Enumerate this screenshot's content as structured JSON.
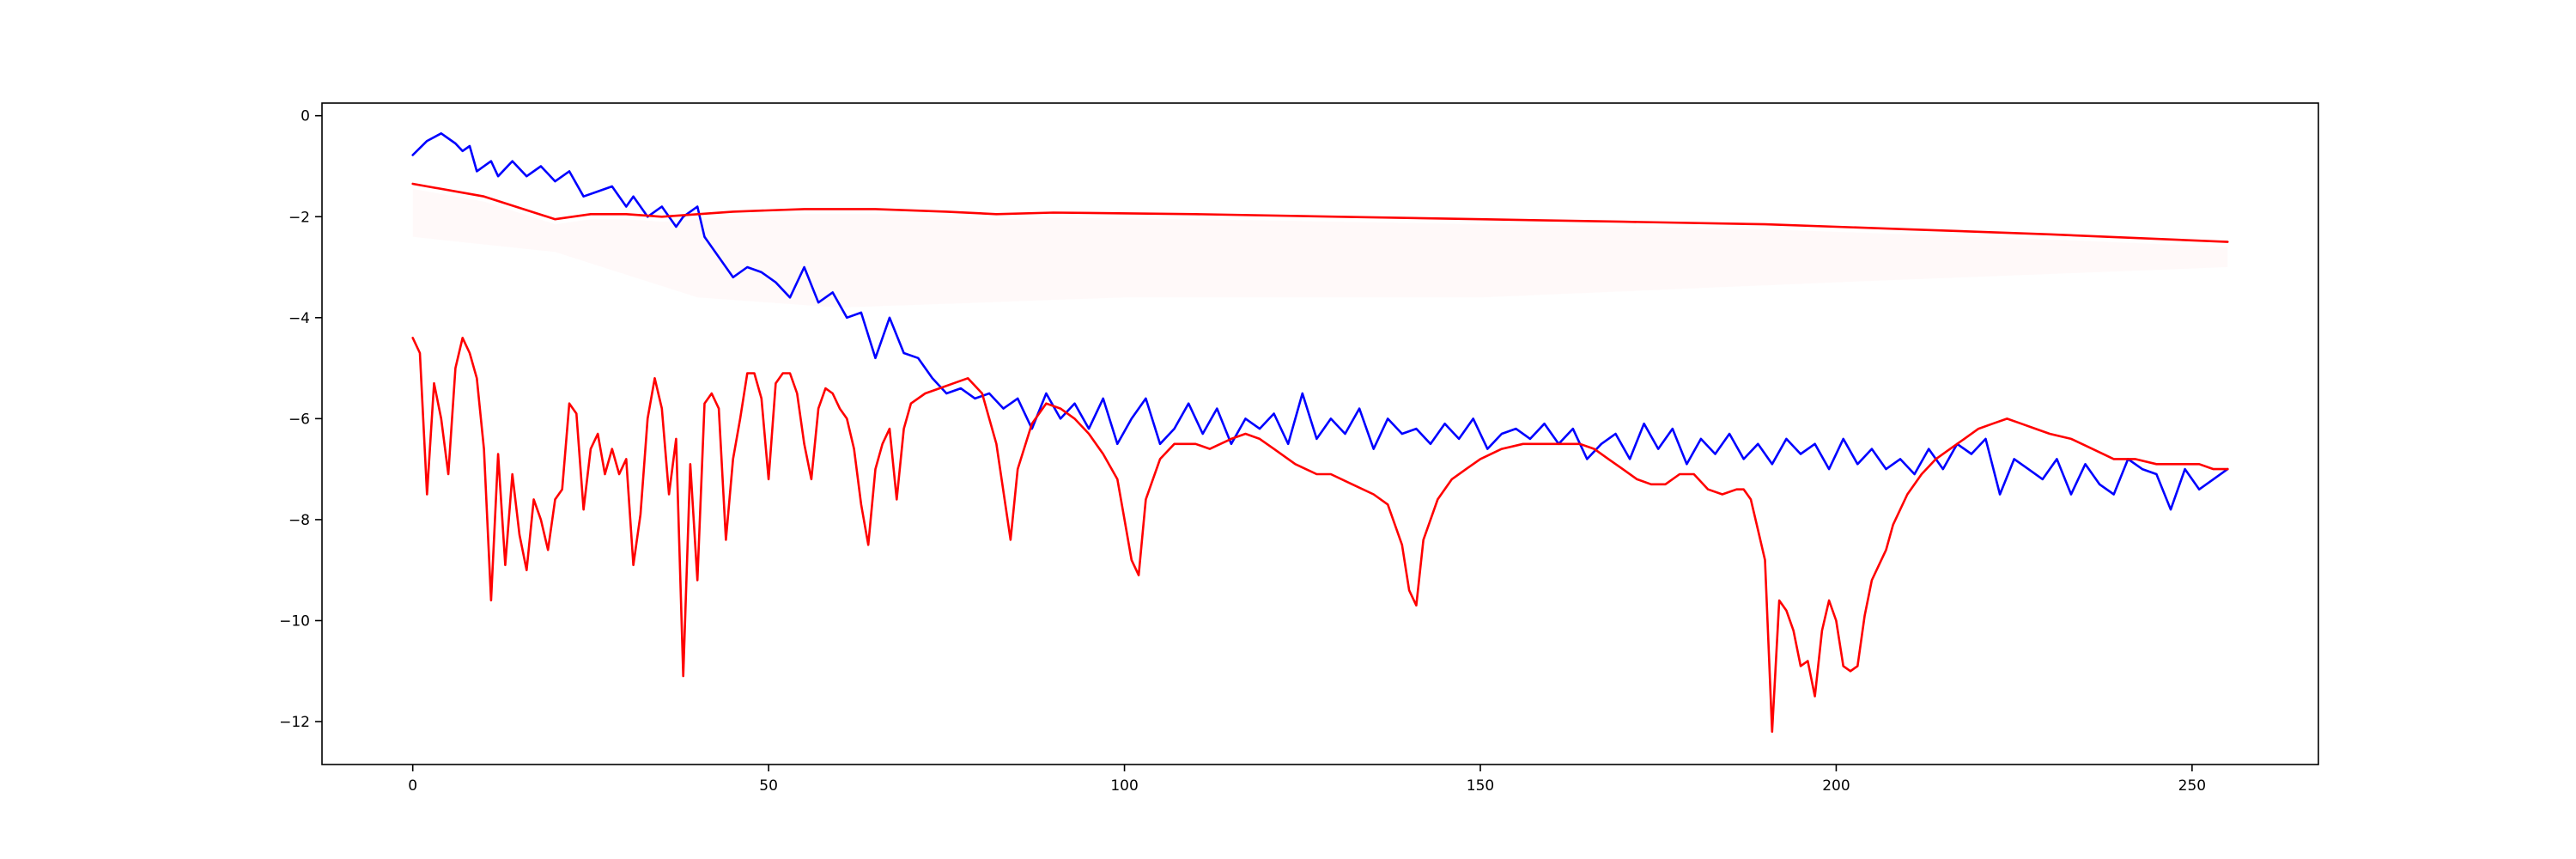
{
  "chart_data": {
    "type": "line",
    "title": "",
    "xlabel": "",
    "ylabel": "",
    "xlim": [
      -12.75,
      267.75
    ],
    "ylim": [
      -12.85,
      0.25
    ],
    "grid": false,
    "legend": "none",
    "x_ticks": [
      0,
      50,
      100,
      150,
      200,
      250
    ],
    "x_tick_labels": [
      "0",
      "50",
      "100",
      "150",
      "200",
      "250"
    ],
    "y_ticks": [
      0,
      -2,
      -4,
      -6,
      -8,
      -10,
      -12
    ],
    "y_tick_labels": [
      "0",
      "−2",
      "−4",
      "−6",
      "−8",
      "−10",
      "−12"
    ],
    "series": [
      {
        "color": "#0000ff",
        "style": "solid",
        "points": [
          [
            0,
            -0.78
          ],
          [
            2,
            -0.5
          ],
          [
            4,
            -0.35
          ],
          [
            6,
            -0.55
          ],
          [
            7,
            -0.7
          ],
          [
            8,
            -0.6
          ],
          [
            9,
            -1.1
          ],
          [
            11,
            -0.9
          ],
          [
            12,
            -1.2
          ],
          [
            14,
            -0.9
          ],
          [
            16,
            -1.2
          ],
          [
            18,
            -1.0
          ],
          [
            20,
            -1.3
          ],
          [
            22,
            -1.1
          ],
          [
            24,
            -1.6
          ],
          [
            26,
            -1.5
          ],
          [
            28,
            -1.4
          ],
          [
            30,
            -1.8
          ],
          [
            31,
            -1.6
          ],
          [
            33,
            -2.0
          ],
          [
            35,
            -1.8
          ],
          [
            37,
            -2.2
          ],
          [
            38,
            -2.0
          ],
          [
            40,
            -1.8
          ],
          [
            41,
            -2.4
          ],
          [
            43,
            -2.8
          ],
          [
            45,
            -3.2
          ],
          [
            47,
            -3.0
          ],
          [
            49,
            -3.1
          ],
          [
            51,
            -3.3
          ],
          [
            53,
            -3.6
          ],
          [
            55,
            -3.0
          ],
          [
            57,
            -3.7
          ],
          [
            59,
            -3.5
          ],
          [
            61,
            -4.0
          ],
          [
            63,
            -3.9
          ],
          [
            65,
            -4.8
          ],
          [
            67,
            -4.0
          ],
          [
            69,
            -4.7
          ],
          [
            71,
            -4.8
          ],
          [
            73,
            -5.2
          ],
          [
            75,
            -5.5
          ],
          [
            77,
            -5.4
          ],
          [
            79,
            -5.6
          ],
          [
            81,
            -5.5
          ],
          [
            83,
            -5.8
          ],
          [
            85,
            -5.6
          ],
          [
            87,
            -6.2
          ],
          [
            89,
            -5.5
          ],
          [
            91,
            -6.0
          ],
          [
            93,
            -5.7
          ],
          [
            95,
            -6.2
          ],
          [
            97,
            -5.6
          ],
          [
            99,
            -6.5
          ],
          [
            101,
            -6.0
          ],
          [
            103,
            -5.6
          ],
          [
            105,
            -6.5
          ],
          [
            107,
            -6.2
          ],
          [
            109,
            -5.7
          ],
          [
            111,
            -6.3
          ],
          [
            113,
            -5.8
          ],
          [
            115,
            -6.5
          ],
          [
            117,
            -6.0
          ],
          [
            119,
            -6.2
          ],
          [
            121,
            -5.9
          ],
          [
            123,
            -6.5
          ],
          [
            125,
            -5.5
          ],
          [
            127,
            -6.4
          ],
          [
            129,
            -6.0
          ],
          [
            131,
            -6.3
          ],
          [
            133,
            -5.8
          ],
          [
            135,
            -6.6
          ],
          [
            137,
            -6.0
          ],
          [
            139,
            -6.3
          ],
          [
            141,
            -6.2
          ],
          [
            143,
            -6.5
          ],
          [
            145,
            -6.1
          ],
          [
            147,
            -6.4
          ],
          [
            149,
            -6.0
          ],
          [
            151,
            -6.6
          ],
          [
            153,
            -6.3
          ],
          [
            155,
            -6.2
          ],
          [
            157,
            -6.4
          ],
          [
            159,
            -6.1
          ],
          [
            161,
            -6.5
          ],
          [
            163,
            -6.2
          ],
          [
            165,
            -6.8
          ],
          [
            167,
            -6.5
          ],
          [
            169,
            -6.3
          ],
          [
            171,
            -6.8
          ],
          [
            173,
            -6.1
          ],
          [
            175,
            -6.6
          ],
          [
            177,
            -6.2
          ],
          [
            179,
            -6.9
          ],
          [
            181,
            -6.4
          ],
          [
            183,
            -6.7
          ],
          [
            185,
            -6.3
          ],
          [
            187,
            -6.8
          ],
          [
            189,
            -6.5
          ],
          [
            191,
            -6.9
          ],
          [
            193,
            -6.4
          ],
          [
            195,
            -6.7
          ],
          [
            197,
            -6.5
          ],
          [
            199,
            -7.0
          ],
          [
            201,
            -6.4
          ],
          [
            203,
            -6.9
          ],
          [
            205,
            -6.6
          ],
          [
            207,
            -7.0
          ],
          [
            209,
            -6.8
          ],
          [
            211,
            -7.1
          ],
          [
            213,
            -6.6
          ],
          [
            215,
            -7.0
          ],
          [
            217,
            -6.5
          ],
          [
            219,
            -6.7
          ],
          [
            221,
            -6.4
          ],
          [
            223,
            -7.5
          ],
          [
            225,
            -6.8
          ],
          [
            227,
            -7.0
          ],
          [
            229,
            -7.2
          ],
          [
            231,
            -6.8
          ],
          [
            233,
            -7.5
          ],
          [
            235,
            -6.9
          ],
          [
            237,
            -7.3
          ],
          [
            239,
            -7.5
          ],
          [
            241,
            -6.8
          ],
          [
            243,
            -7.0
          ],
          [
            245,
            -7.1
          ],
          [
            247,
            -7.8
          ],
          [
            249,
            -7.0
          ],
          [
            251,
            -7.4
          ],
          [
            253,
            -7.2
          ],
          [
            255,
            -7.0
          ]
        ]
      },
      {
        "color": "#ff0000",
        "style": "solid",
        "points": [
          [
            0,
            -1.35
          ],
          [
            10,
            -1.6
          ],
          [
            20,
            -2.05
          ],
          [
            25,
            -1.95
          ],
          [
            30,
            -1.95
          ],
          [
            35,
            -2.0
          ],
          [
            45,
            -1.9
          ],
          [
            55,
            -1.85
          ],
          [
            65,
            -1.85
          ],
          [
            75,
            -1.9
          ],
          [
            82,
            -1.95
          ],
          [
            90,
            -1.92
          ],
          [
            110,
            -1.95
          ],
          [
            130,
            -2.0
          ],
          [
            150,
            -2.05
          ],
          [
            170,
            -2.1
          ],
          [
            190,
            -2.15
          ],
          [
            210,
            -2.25
          ],
          [
            230,
            -2.35
          ],
          [
            255,
            -2.5
          ]
        ]
      },
      {
        "color": "#ff0000",
        "style": "solid",
        "points": [
          [
            0,
            -4.4
          ],
          [
            1,
            -4.7
          ],
          [
            2,
            -7.5
          ],
          [
            3,
            -5.3
          ],
          [
            4,
            -6.0
          ],
          [
            5,
            -7.1
          ],
          [
            6,
            -5.0
          ],
          [
            7,
            -4.4
          ],
          [
            8,
            -4.7
          ],
          [
            9,
            -5.2
          ],
          [
            10,
            -6.6
          ],
          [
            11,
            -9.6
          ],
          [
            12,
            -6.7
          ],
          [
            13,
            -8.9
          ],
          [
            14,
            -7.1
          ],
          [
            15,
            -8.3
          ],
          [
            16,
            -9.0
          ],
          [
            17,
            -7.6
          ],
          [
            18,
            -8.0
          ],
          [
            19,
            -8.6
          ],
          [
            20,
            -7.6
          ],
          [
            21,
            -7.4
          ],
          [
            22,
            -5.7
          ],
          [
            23,
            -5.9
          ],
          [
            24,
            -7.8
          ],
          [
            25,
            -6.6
          ],
          [
            26,
            -6.3
          ],
          [
            27,
            -7.1
          ],
          [
            28,
            -6.6
          ],
          [
            29,
            -7.1
          ],
          [
            30,
            -6.8
          ],
          [
            31,
            -8.9
          ],
          [
            32,
            -7.9
          ],
          [
            33,
            -6.0
          ],
          [
            34,
            -5.2
          ],
          [
            35,
            -5.8
          ],
          [
            36,
            -7.5
          ],
          [
            37,
            -6.4
          ],
          [
            38,
            -11.1
          ],
          [
            39,
            -6.9
          ],
          [
            40,
            -9.2
          ],
          [
            41,
            -5.7
          ],
          [
            42,
            -5.5
          ],
          [
            43,
            -5.8
          ],
          [
            44,
            -8.4
          ],
          [
            45,
            -6.8
          ],
          [
            46,
            -6.0
          ],
          [
            47,
            -5.1
          ],
          [
            48,
            -5.1
          ],
          [
            49,
            -5.6
          ],
          [
            50,
            -7.2
          ],
          [
            51,
            -5.3
          ],
          [
            52,
            -5.1
          ],
          [
            53,
            -5.1
          ],
          [
            54,
            -5.5
          ],
          [
            55,
            -6.5
          ],
          [
            56,
            -7.2
          ],
          [
            57,
            -5.8
          ],
          [
            58,
            -5.4
          ],
          [
            59,
            -5.5
          ],
          [
            60,
            -5.8
          ],
          [
            61,
            -6.0
          ],
          [
            62,
            -6.6
          ],
          [
            63,
            -7.7
          ],
          [
            64,
            -8.5
          ],
          [
            65,
            -7.0
          ],
          [
            66,
            -6.5
          ],
          [
            67,
            -6.2
          ],
          [
            68,
            -7.6
          ],
          [
            69,
            -6.2
          ],
          [
            70,
            -5.7
          ],
          [
            72,
            -5.5
          ],
          [
            74,
            -5.4
          ],
          [
            76,
            -5.3
          ],
          [
            78,
            -5.2
          ],
          [
            80,
            -5.5
          ],
          [
            82,
            -6.5
          ],
          [
            84,
            -8.4
          ],
          [
            85,
            -7.0
          ],
          [
            87,
            -6.1
          ],
          [
            89,
            -5.7
          ],
          [
            91,
            -5.8
          ],
          [
            93,
            -6.0
          ],
          [
            95,
            -6.3
          ],
          [
            97,
            -6.7
          ],
          [
            99,
            -7.2
          ],
          [
            100,
            -8.0
          ],
          [
            101,
            -8.8
          ],
          [
            102,
            -9.1
          ],
          [
            103,
            -7.6
          ],
          [
            105,
            -6.8
          ],
          [
            107,
            -6.5
          ],
          [
            110,
            -6.5
          ],
          [
            112,
            -6.6
          ],
          [
            115,
            -6.4
          ],
          [
            117,
            -6.3
          ],
          [
            119,
            -6.4
          ],
          [
            121,
            -6.6
          ],
          [
            124,
            -6.9
          ],
          [
            127,
            -7.1
          ],
          [
            129,
            -7.1
          ],
          [
            132,
            -7.3
          ],
          [
            135,
            -7.5
          ],
          [
            137,
            -7.7
          ],
          [
            139,
            -8.5
          ],
          [
            140,
            -9.4
          ],
          [
            141,
            -9.7
          ],
          [
            142,
            -8.4
          ],
          [
            144,
            -7.6
          ],
          [
            146,
            -7.2
          ],
          [
            148,
            -7.0
          ],
          [
            150,
            -6.8
          ],
          [
            153,
            -6.6
          ],
          [
            156,
            -6.5
          ],
          [
            160,
            -6.5
          ],
          [
            164,
            -6.5
          ],
          [
            166,
            -6.6
          ],
          [
            168,
            -6.8
          ],
          [
            170,
            -7.0
          ],
          [
            172,
            -7.2
          ],
          [
            174,
            -7.3
          ],
          [
            176,
            -7.3
          ],
          [
            178,
            -7.1
          ],
          [
            180,
            -7.1
          ],
          [
            182,
            -7.4
          ],
          [
            184,
            -7.5
          ],
          [
            186,
            -7.4
          ],
          [
            187,
            -7.4
          ],
          [
            188,
            -7.6
          ],
          [
            189,
            -8.2
          ],
          [
            190,
            -8.8
          ],
          [
            191,
            -12.2
          ],
          [
            192,
            -9.6
          ],
          [
            193,
            -9.8
          ],
          [
            194,
            -10.2
          ],
          [
            195,
            -10.9
          ],
          [
            196,
            -10.8
          ],
          [
            197,
            -11.5
          ],
          [
            198,
            -10.2
          ],
          [
            199,
            -9.6
          ],
          [
            200,
            -10.0
          ],
          [
            201,
            -10.9
          ],
          [
            202,
            -11.0
          ],
          [
            203,
            -10.9
          ],
          [
            204,
            -9.9
          ],
          [
            205,
            -9.2
          ],
          [
            206,
            -8.9
          ],
          [
            207,
            -8.6
          ],
          [
            208,
            -8.1
          ],
          [
            210,
            -7.5
          ],
          [
            212,
            -7.1
          ],
          [
            214,
            -6.8
          ],
          [
            216,
            -6.6
          ],
          [
            218,
            -6.4
          ],
          [
            220,
            -6.2
          ],
          [
            222,
            -6.1
          ],
          [
            224,
            -6.0
          ],
          [
            226,
            -6.1
          ],
          [
            228,
            -6.2
          ],
          [
            230,
            -6.3
          ],
          [
            233,
            -6.4
          ],
          [
            236,
            -6.6
          ],
          [
            239,
            -6.8
          ],
          [
            242,
            -6.8
          ],
          [
            245,
            -6.9
          ],
          [
            248,
            -6.9
          ],
          [
            251,
            -6.9
          ],
          [
            253,
            -7.0
          ],
          [
            255,
            -7.0
          ]
        ]
      }
    ]
  }
}
